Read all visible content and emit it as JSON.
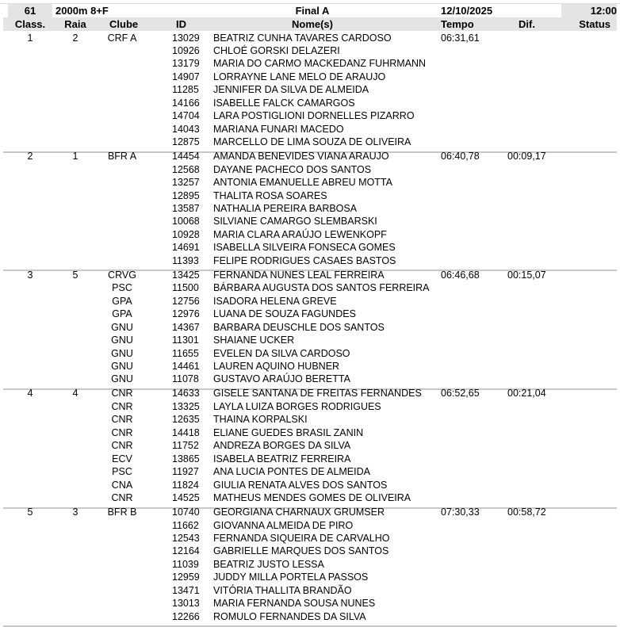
{
  "event": {
    "number": "61",
    "distance": "2000m  8+F",
    "phase": "Final A",
    "date": "12/10/2025",
    "time": "12:00"
  },
  "columns": {
    "classif": "Class.",
    "lane": "Raia",
    "club": "Clube",
    "id": "ID",
    "names": "Nome(s)",
    "time": "Tempo",
    "diff": "Dif.",
    "status": "Status"
  },
  "results": [
    {
      "place": "1",
      "lane": "2",
      "time": "06:31,61",
      "diff": "",
      "members": [
        [
          "CRF A",
          "13029",
          "BEATRIZ CUNHA TAVARES CARDOSO"
        ],
        [
          "",
          "10926",
          "CHLOÉ GORSKI DELAZERI"
        ],
        [
          "",
          "13179",
          "MARIA DO CARMO MACKEDANZ FUHRMANN"
        ],
        [
          "",
          "14907",
          "LORRAYNE LANE MELO DE ARAUJO"
        ],
        [
          "",
          "11285",
          "JENNIFER DA SILVA DE ALMEIDA"
        ],
        [
          "",
          "14166",
          "ISABELLE FALCK CAMARGOS"
        ],
        [
          "",
          "14704",
          "LARA POSTIGLIONI DORNELLES PIZARRO"
        ],
        [
          "",
          "14043",
          "MARIANA FUNARI MACEDO"
        ],
        [
          "",
          "12875",
          "MARCELLO DE LIMA SOUZA DE OLIVEIRA"
        ]
      ]
    },
    {
      "place": "2",
      "lane": "1",
      "time": "06:40,78",
      "diff": "00:09,17",
      "members": [
        [
          "BFR A",
          "14454",
          "AMANDA BENEVIDES VIANA ARAUJO"
        ],
        [
          "",
          "12568",
          "DAYANE PACHECO DOS SANTOS"
        ],
        [
          "",
          "13257",
          "ANTONIA EMANUELLE ABREU MOTTA"
        ],
        [
          "",
          "12895",
          "THALITA ROSA SOARES"
        ],
        [
          "",
          "13587",
          "NATHALIA PEREIRA BARBOSA"
        ],
        [
          "",
          "10068",
          "SILVIANE CAMARGO SLEMBARSKI"
        ],
        [
          "",
          "10928",
          "MARIA CLARA ARAÚJO LEWENKOPF"
        ],
        [
          "",
          "14691",
          "ISABELLA SILVEIRA FONSECA GOMES"
        ],
        [
          "",
          "11393",
          "FELIPE RODRIGUES CASAES BASTOS"
        ]
      ]
    },
    {
      "place": "3",
      "lane": "5",
      "time": "06:46,68",
      "diff": "00:15,07",
      "members": [
        [
          "CRVG",
          "13425",
          "FERNANDA NUNES LEAL FERREIRA"
        ],
        [
          "PSC",
          "11500",
          "BÁRBARA AUGUSTA DOS SANTOS FERREIRA"
        ],
        [
          "GPA",
          "12756",
          "ISADORA HELENA GREVE"
        ],
        [
          "GPA",
          "12976",
          "LUANA DE SOUZA FAGUNDES"
        ],
        [
          "GNU",
          "14367",
          "BARBARA DEUSCHLE DOS SANTOS"
        ],
        [
          "GNU",
          "11301",
          "SHAIANE UCKER"
        ],
        [
          "GNU",
          "11655",
          "EVELEN DA SILVA CARDOSO"
        ],
        [
          "GNU",
          "14461",
          "LAUREN AQUINO HUBNER"
        ],
        [
          "GNU",
          "11078",
          "GUSTAVO ARAÚJO BERETTA"
        ]
      ]
    },
    {
      "place": "4",
      "lane": "4",
      "time": "06:52,65",
      "diff": "00:21,04",
      "members": [
        [
          "CNR",
          "14633",
          "GISELE SANTANA DE FREITAS FERNANDES"
        ],
        [
          "CNR",
          "13325",
          "LAYLA LUIZA BORGES RODRIGUES"
        ],
        [
          "CNR",
          "12635",
          "THAINA KORPALSKI"
        ],
        [
          "CNR",
          "14418",
          "ELIANE GUEDES BRASIL ZANIN"
        ],
        [
          "CNR",
          "11752",
          "ANDREZA BORGES DA SILVA"
        ],
        [
          "ECV",
          "13865",
          "ISABELA BEATRIZ FERREIRA"
        ],
        [
          "PSC",
          "11927",
          "ANA LUCIA PONTES DE ALMEIDA"
        ],
        [
          "CNA",
          "11824",
          "GIULIA RENATA ALVES DOS SANTOS"
        ],
        [
          "CNR",
          "14525",
          "MATHEUS MENDES GOMES DE OLIVEIRA"
        ]
      ]
    },
    {
      "place": "5",
      "lane": "3",
      "time": "07:30,33",
      "diff": "00:58,72",
      "members": [
        [
          "BFR B",
          "10740",
          "GEORGIANA CHARNAUX GRUMSER"
        ],
        [
          "",
          "11662",
          "GIOVANNA ALMEIDA DE PIRO"
        ],
        [
          "",
          "12543",
          "FERNANDA SIQUEIRA DE CARVALHO"
        ],
        [
          "",
          "12164",
          "GABRIELLE MARQUES DOS SANTOS"
        ],
        [
          "",
          "11039",
          "BEATRIZ JUSTO LESSA"
        ],
        [
          "",
          "12959",
          "JUDDY MILLA PORTELA PASSOS"
        ],
        [
          "",
          "13471",
          "VITÓRIA THALLITA BRANDÃO"
        ],
        [
          "",
          "13013",
          "MARIA FERNANDA SOUSA NUNES"
        ],
        [
          "",
          "12266",
          "ROMULO FERNANDES DA SILVA"
        ]
      ]
    }
  ]
}
